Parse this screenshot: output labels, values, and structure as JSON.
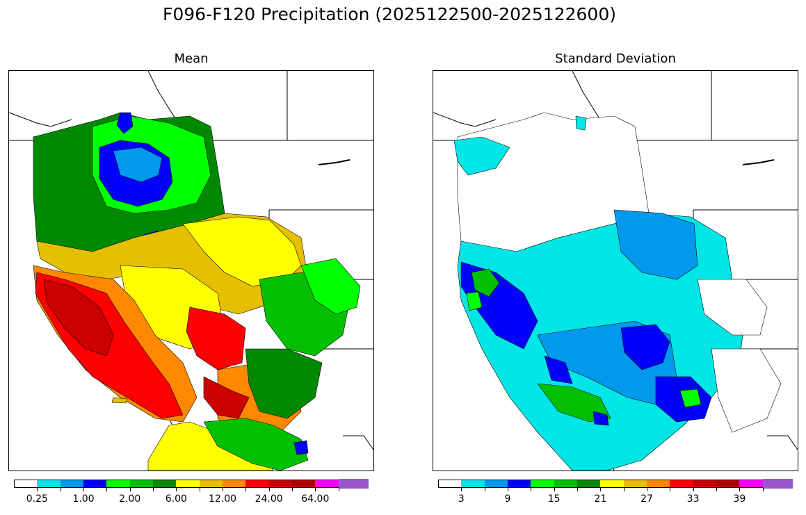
{
  "figure": {
    "title": "F096-F120 Precipitation (2025122500-2025122600)"
  },
  "panels": [
    {
      "id": "mean",
      "title": "Mean",
      "colorbar": {
        "colors": [
          "#ffffff",
          "#00e5e5",
          "#0099ee",
          "#0000ff",
          "#00ff00",
          "#00c000",
          "#008800",
          "#ffff00",
          "#e5bf00",
          "#ff8800",
          "#ff0000",
          "#cc0000",
          "#b00000",
          "#ff00ff",
          "#9955cc"
        ],
        "tick_labels": [
          "0.25",
          "1.00",
          "2.00",
          "6.00",
          "12.00",
          "24.00",
          "64.00"
        ]
      }
    },
    {
      "id": "stddev",
      "title": "Standard Deviation",
      "colorbar": {
        "colors": [
          "#ffffff",
          "#00e5e5",
          "#0099ee",
          "#0000ff",
          "#00ff00",
          "#00c000",
          "#008800",
          "#ffff00",
          "#e5bf00",
          "#ff8800",
          "#ff0000",
          "#cc0000",
          "#b00000",
          "#ff00ff",
          "#9955cc"
        ],
        "tick_labels": [
          "3",
          "9",
          "15",
          "21",
          "27",
          "33",
          "39"
        ]
      }
    }
  ]
}
